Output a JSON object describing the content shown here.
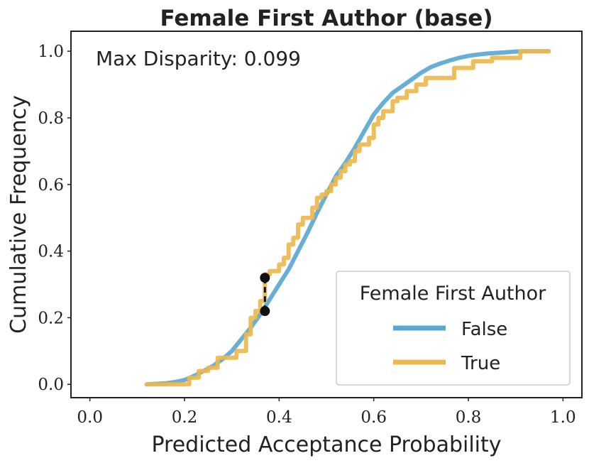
{
  "chart_data": {
    "type": "line",
    "title": "Female First Author (base)",
    "xlabel": "Predicted Acceptance Probability",
    "ylabel": "Cumulative Frequency",
    "xlim": [
      -0.04,
      1.04
    ],
    "ylim": [
      -0.04,
      1.06
    ],
    "xticks": [
      0.0,
      0.2,
      0.4,
      0.6,
      0.8,
      1.0
    ],
    "yticks": [
      0.0,
      0.2,
      0.4,
      0.6,
      0.8,
      1.0
    ],
    "xtick_labels": [
      "0.0",
      "0.2",
      "0.4",
      "0.6",
      "0.8",
      "1.0"
    ],
    "ytick_labels": [
      "0.0",
      "0.2",
      "0.4",
      "0.6",
      "0.8",
      "1.0"
    ],
    "grid": false,
    "legend": {
      "title": "Female First Author",
      "placement": "lower-right"
    },
    "annotation": "Max Disparity: 0.099",
    "max_disparity": {
      "x": 0.37,
      "y_low": 0.22,
      "y_high": 0.32,
      "value": 0.099
    },
    "series": [
      {
        "name": "False",
        "color": "#5aa8d2",
        "x": [
          0.12,
          0.16,
          0.18,
          0.2,
          0.22,
          0.24,
          0.26,
          0.28,
          0.3,
          0.32,
          0.34,
          0.36,
          0.38,
          0.4,
          0.42,
          0.44,
          0.46,
          0.48,
          0.5,
          0.52,
          0.54,
          0.56,
          0.58,
          0.6,
          0.62,
          0.64,
          0.66,
          0.68,
          0.7,
          0.72,
          0.74,
          0.76,
          0.78,
          0.8,
          0.82,
          0.84,
          0.86,
          0.88,
          0.9,
          0.92,
          0.94,
          0.97
        ],
        "y": [
          0.0,
          0.003,
          0.007,
          0.013,
          0.025,
          0.04,
          0.055,
          0.075,
          0.1,
          0.135,
          0.17,
          0.21,
          0.255,
          0.3,
          0.345,
          0.4,
          0.455,
          0.515,
          0.57,
          0.625,
          0.665,
          0.71,
          0.76,
          0.81,
          0.845,
          0.875,
          0.895,
          0.915,
          0.935,
          0.952,
          0.963,
          0.972,
          0.98,
          0.986,
          0.99,
          0.993,
          0.995,
          0.997,
          0.999,
          1.0,
          1.0,
          1.0
        ]
      },
      {
        "name": "True",
        "color": "#ecb84d",
        "x": [
          0.12,
          0.18,
          0.2,
          0.21,
          0.23,
          0.25,
          0.27,
          0.29,
          0.31,
          0.33,
          0.34,
          0.35,
          0.36,
          0.37,
          0.38,
          0.39,
          0.4,
          0.41,
          0.42,
          0.43,
          0.44,
          0.45,
          0.46,
          0.47,
          0.48,
          0.49,
          0.5,
          0.51,
          0.52,
          0.53,
          0.54,
          0.55,
          0.56,
          0.57,
          0.58,
          0.59,
          0.6,
          0.61,
          0.62,
          0.63,
          0.64,
          0.65,
          0.66,
          0.67,
          0.68,
          0.69,
          0.7,
          0.71,
          0.73,
          0.75,
          0.77,
          0.79,
          0.81,
          0.83,
          0.85,
          0.87,
          0.89,
          0.91,
          0.97
        ],
        "y": [
          0.0,
          0.0,
          0.0,
          0.02,
          0.04,
          0.05,
          0.08,
          0.08,
          0.1,
          0.15,
          0.2,
          0.22,
          0.25,
          0.33,
          0.34,
          0.34,
          0.36,
          0.38,
          0.42,
          0.44,
          0.48,
          0.5,
          0.5,
          0.53,
          0.56,
          0.57,
          0.58,
          0.6,
          0.62,
          0.64,
          0.66,
          0.67,
          0.7,
          0.72,
          0.72,
          0.74,
          0.78,
          0.8,
          0.82,
          0.82,
          0.85,
          0.86,
          0.86,
          0.88,
          0.88,
          0.9,
          0.9,
          0.92,
          0.92,
          0.92,
          0.95,
          0.95,
          0.97,
          0.97,
          0.98,
          0.98,
          0.98,
          1.0,
          1.0
        ]
      }
    ]
  }
}
